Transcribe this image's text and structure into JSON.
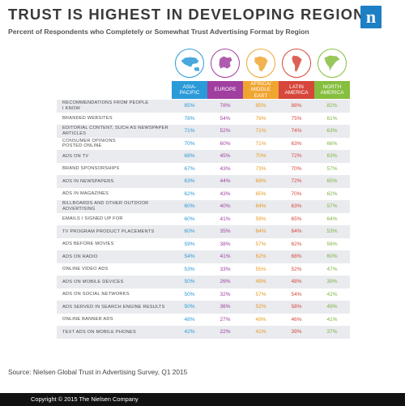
{
  "header": {
    "title": "TRUST IS HIGHEST IN DEVELOPING REGIONS",
    "subtitle": "Percent of Respondents who Completely or Somewhat Trust Advertising Format by Region"
  },
  "brand": {
    "logo_letter": "n",
    "color": "#1d7fc4"
  },
  "colors": {
    "header_bg": [
      "#2b9ad8",
      "#a13fa0",
      "#f0a531",
      "#d6463b",
      "#86be3f"
    ],
    "value_text": [
      "#2b9ad8",
      "#a13fa0",
      "#e8981c",
      "#d6463b",
      "#7db340"
    ],
    "row_shade": "#e9ebef"
  },
  "icons": [
    "asia-pacific-map-icon",
    "europe-map-icon",
    "africa-middle-east-map-icon",
    "latin-america-map-icon",
    "north-america-map-icon"
  ],
  "chart_data": {
    "type": "table",
    "title": "TRUST IS HIGHEST IN DEVELOPING REGIONS",
    "subtitle": "Percent of Respondents who Completely or Somewhat Trust Advertising Format by Region",
    "columns": [
      {
        "lines": [
          "ASIA-",
          "PACIFIC"
        ]
      },
      {
        "lines": [
          "EUROPE"
        ]
      },
      {
        "lines": [
          "AFRICA/",
          "MIDDLE EAST"
        ]
      },
      {
        "lines": [
          "LATIN",
          "AMERICA"
        ]
      },
      {
        "lines": [
          "NORTH",
          "AMERICA"
        ]
      }
    ],
    "rows": [
      {
        "lines": [
          "RECOMMENDATIONS FROM PEOPLE",
          "I KNOW"
        ],
        "values": [
          "85%",
          "78%",
          "85%",
          "88%",
          "82%"
        ]
      },
      {
        "lines": [
          "BRANDED WEBSITES"
        ],
        "values": [
          "78%",
          "54%",
          "76%",
          "75%",
          "61%"
        ]
      },
      {
        "lines": [
          "EDITORIAL CONTENT, SUCH AS NEWSPAPER",
          "ARTICLES"
        ],
        "values": [
          "71%",
          "52%",
          "71%",
          "74%",
          "63%"
        ]
      },
      {
        "lines": [
          "CONSUMER OPINIONS",
          "POSTED ONLINE"
        ],
        "values": [
          "70%",
          "60%",
          "71%",
          "63%",
          "66%"
        ]
      },
      {
        "lines": [
          "ADS ON TV"
        ],
        "values": [
          "68%",
          "45%",
          "70%",
          "72%",
          "63%"
        ]
      },
      {
        "lines": [
          "BRAND SPONSORSHIPS"
        ],
        "values": [
          "67%",
          "43%",
          "73%",
          "70%",
          "57%"
        ]
      },
      {
        "lines": [
          "ADS IN NEWSPAPERS"
        ],
        "values": [
          "63%",
          "44%",
          "69%",
          "72%",
          "65%"
        ]
      },
      {
        "lines": [
          "ADS IN MAGAZINES"
        ],
        "values": [
          "62%",
          "43%",
          "65%",
          "70%",
          "62%"
        ]
      },
      {
        "lines": [
          "BILLBOARDS AND OTHER OUTDOOR",
          "ADVERTISING"
        ],
        "values": [
          "60%",
          "40%",
          "64%",
          "63%",
          "57%"
        ]
      },
      {
        "lines": [
          "EMAILS I SIGNED UP FOR"
        ],
        "values": [
          "60%",
          "41%",
          "59%",
          "65%",
          "64%"
        ]
      },
      {
        "lines": [
          "TV PROGRAM PRODUCT PLACEMENTS"
        ],
        "values": [
          "60%",
          "35%",
          "64%",
          "64%",
          "53%"
        ]
      },
      {
        "lines": [
          "ADS BEFORE MOVIES"
        ],
        "values": [
          "59%",
          "38%",
          "57%",
          "62%",
          "56%"
        ]
      },
      {
        "lines": [
          "ADS ON RADIO"
        ],
        "values": [
          "54%",
          "41%",
          "62%",
          "68%",
          "60%"
        ]
      },
      {
        "lines": [
          "ONLINE VIDEO ADS"
        ],
        "values": [
          "53%",
          "33%",
          "55%",
          "52%",
          "47%"
        ]
      },
      {
        "lines": [
          "ADS ON MOBILE DEVICES"
        ],
        "values": [
          "50%",
          "26%",
          "49%",
          "48%",
          "39%"
        ]
      },
      {
        "lines": [
          "ADS ON SOCIAL NETWORKS"
        ],
        "values": [
          "50%",
          "32%",
          "57%",
          "54%",
          "42%"
        ]
      },
      {
        "lines": [
          "ADS SERVED IN SEARCH ENGINE RESULTS"
        ],
        "values": [
          "50%",
          "36%",
          "52%",
          "58%",
          "49%"
        ]
      },
      {
        "lines": [
          "ONLINE BANNER ADS"
        ],
        "values": [
          "48%",
          "27%",
          "49%",
          "46%",
          "41%"
        ]
      },
      {
        "lines": [
          "TEXT ADS ON MOBILE PHONES"
        ],
        "values": [
          "42%",
          "22%",
          "41%",
          "39%",
          "37%"
        ]
      }
    ]
  },
  "source": "Source: Nielsen Global Trust in Advertising Survey, Q1 2015",
  "footer": {
    "copyright": "Copyright © 2015 The Nielsen Company"
  }
}
